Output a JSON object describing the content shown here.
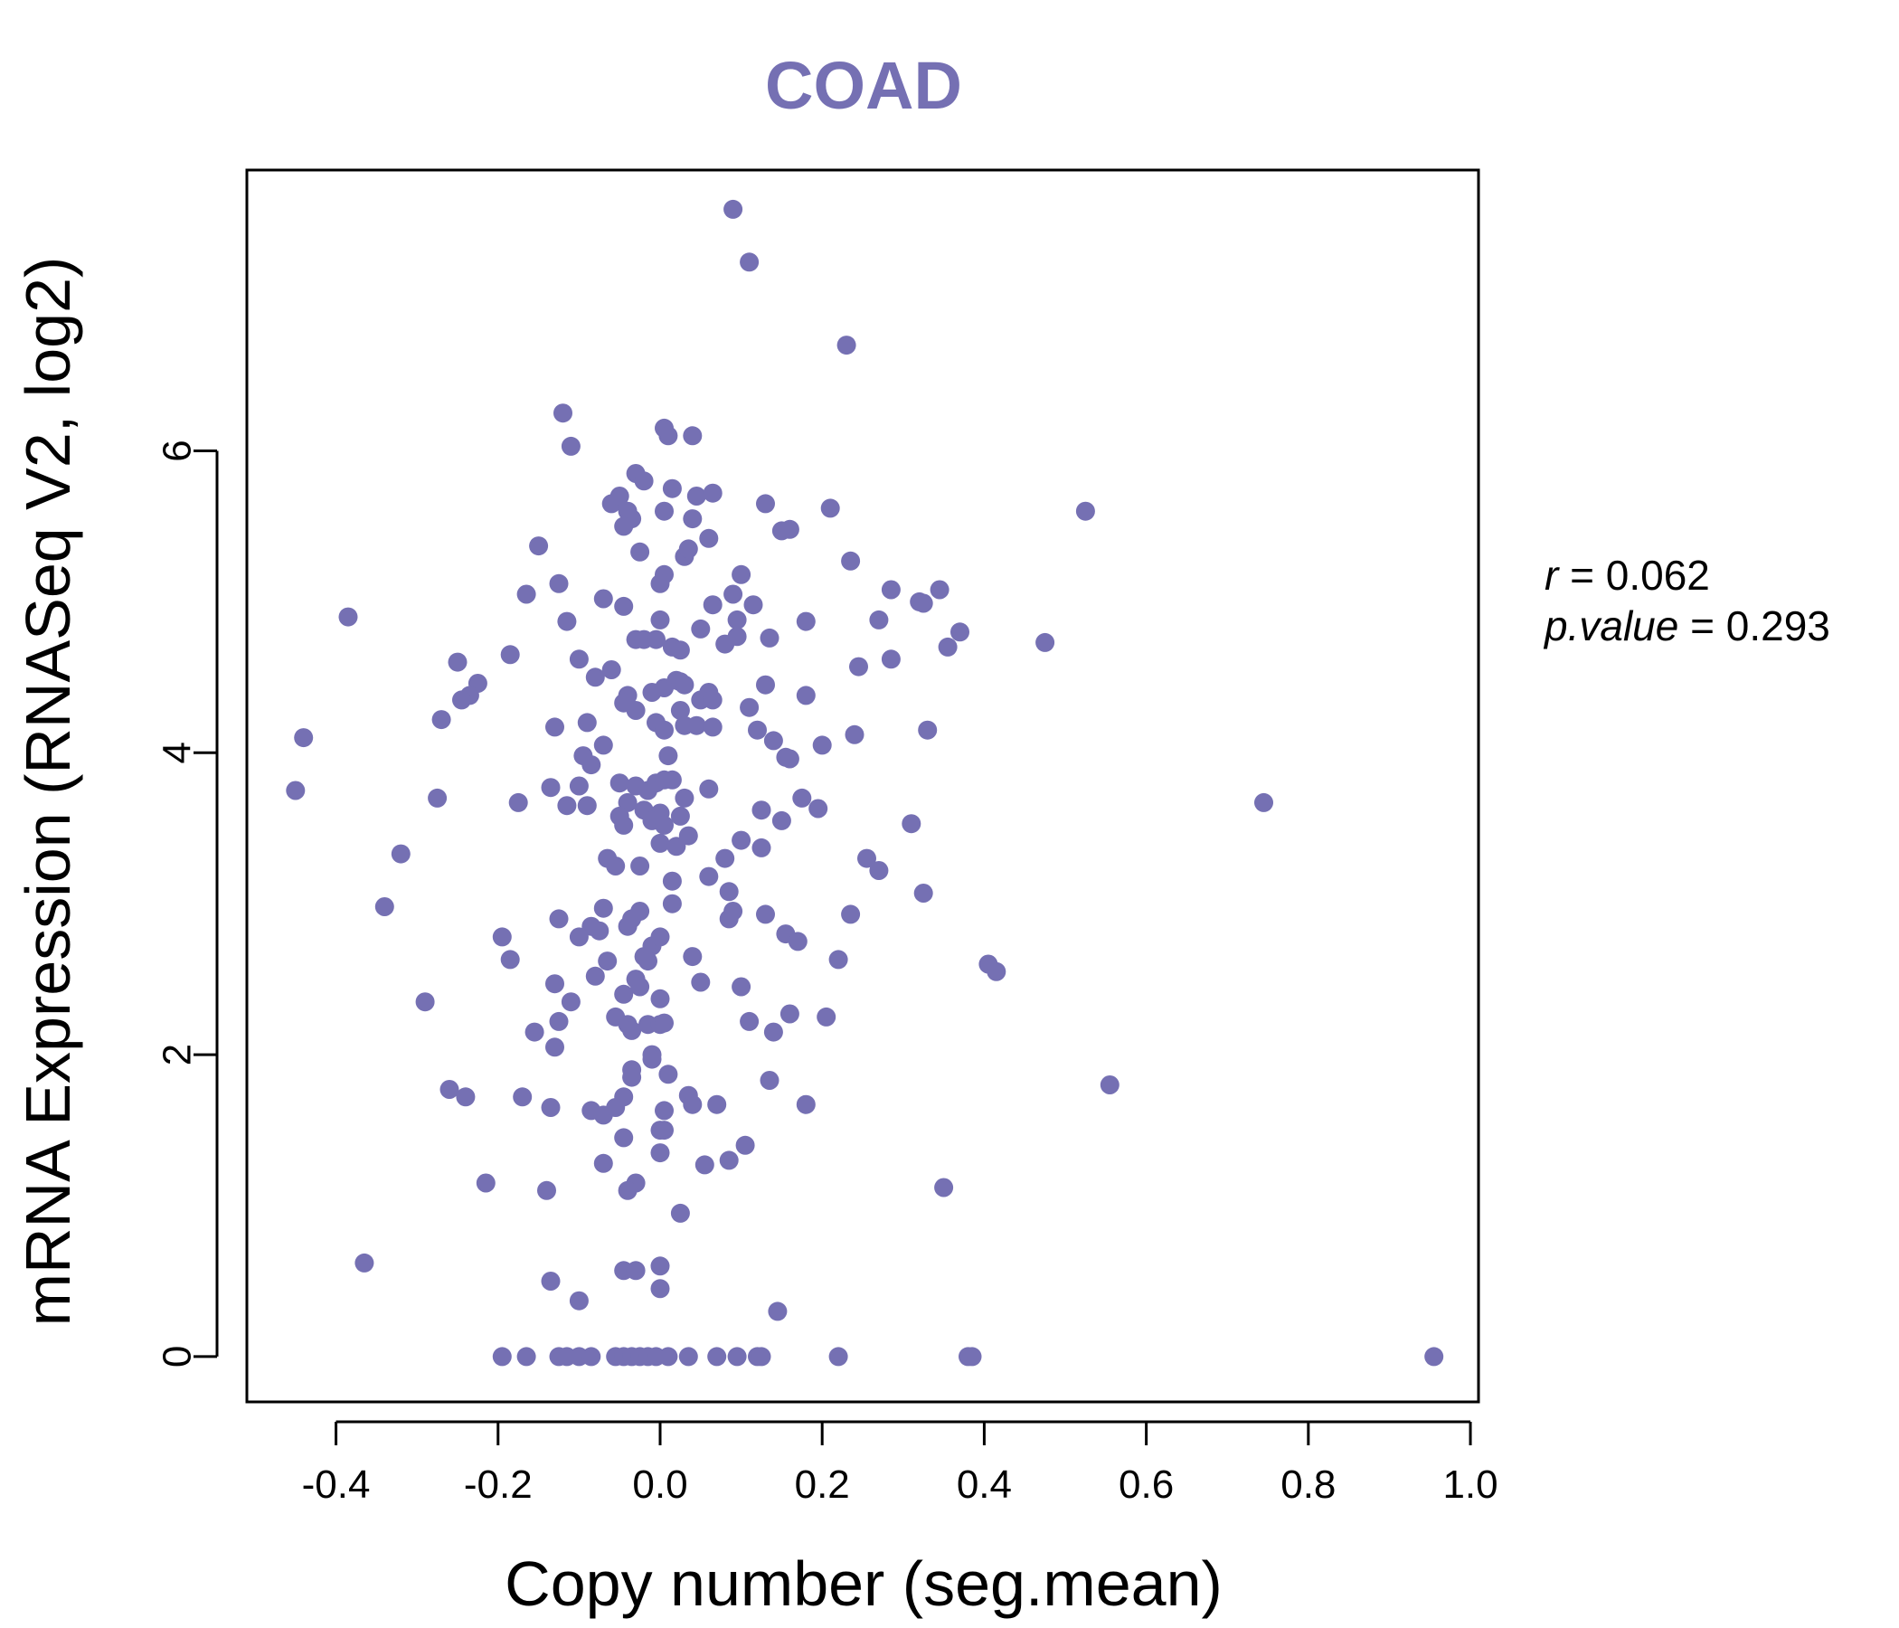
{
  "chart_data": {
    "type": "scatter",
    "title": "COAD",
    "xlabel": "Copy number (seg.mean)",
    "ylabel": "mRNA Expression (RNASeq V2, log2)",
    "xlim": [
      -0.51,
      1.01
    ],
    "ylim": [
      -0.3,
      7.86
    ],
    "x_ticks": [
      -0.4,
      -0.2,
      0.0,
      0.2,
      0.4,
      0.6,
      0.8,
      1.0
    ],
    "x_tick_labels": [
      "-0.4",
      "-0.2",
      "0.0",
      "0.2",
      "0.4",
      "0.6",
      "0.8",
      "1.0"
    ],
    "y_ticks": [
      0,
      2,
      4,
      6
    ],
    "y_tick_labels": [
      "0",
      "2",
      "4",
      "6"
    ],
    "grid": false,
    "colors": {
      "points": "#7570b3",
      "title": "#7570b3"
    },
    "stats": {
      "r_label": "r",
      "r_value": "0.062",
      "p_label": "p.value",
      "p_value": "0.293"
    },
    "points": [
      [
        0.09,
        7.6
      ],
      [
        0.11,
        7.25
      ],
      [
        0.23,
        6.7
      ],
      [
        -0.12,
        6.25
      ],
      [
        -0.11,
        6.03
      ],
      [
        0.005,
        6.15
      ],
      [
        0.01,
        6.1
      ],
      [
        0.04,
        6.1
      ],
      [
        0.525,
        5.6
      ],
      [
        -0.03,
        5.85
      ],
      [
        -0.02,
        5.8
      ],
      [
        0.015,
        5.75
      ],
      [
        -0.06,
        5.65
      ],
      [
        -0.05,
        5.7
      ],
      [
        -0.04,
        5.6
      ],
      [
        -0.035,
        5.55
      ],
      [
        -0.045,
        5.5
      ],
      [
        0.005,
        5.6
      ],
      [
        0.045,
        5.7
      ],
      [
        0.065,
        5.72
      ],
      [
        0.13,
        5.65
      ],
      [
        0.21,
        5.62
      ],
      [
        0.04,
        5.55
      ],
      [
        0.06,
        5.42
      ],
      [
        0.15,
        5.47
      ],
      [
        0.16,
        5.48
      ],
      [
        -0.15,
        5.37
      ],
      [
        -0.025,
        5.33
      ],
      [
        0.03,
        5.3
      ],
      [
        0.035,
        5.35
      ],
      [
        0.235,
        5.27
      ],
      [
        -0.125,
        5.12
      ],
      [
        0.005,
        5.18
      ],
      [
        0.0,
        5.12
      ],
      [
        0.1,
        5.18
      ],
      [
        0.09,
        5.05
      ],
      [
        0.115,
        4.98
      ],
      [
        0.285,
        5.08
      ],
      [
        0.345,
        5.08
      ],
      [
        -0.385,
        4.9
      ],
      [
        -0.165,
        5.05
      ],
      [
        -0.07,
        5.02
      ],
      [
        -0.045,
        4.97
      ],
      [
        0.065,
        4.98
      ],
      [
        0.32,
        5.0
      ],
      [
        0.325,
        4.99
      ],
      [
        -0.115,
        4.87
      ],
      [
        -0.03,
        4.75
      ],
      [
        0.0,
        4.88
      ],
      [
        0.05,
        4.82
      ],
      [
        0.095,
        4.88
      ],
      [
        0.095,
        4.77
      ],
      [
        0.08,
        4.72
      ],
      [
        0.135,
        4.76
      ],
      [
        0.18,
        4.87
      ],
      [
        0.27,
        4.88
      ],
      [
        0.37,
        4.8
      ],
      [
        0.355,
        4.7
      ],
      [
        0.475,
        4.73
      ],
      [
        -0.185,
        4.65
      ],
      [
        -0.1,
        4.62
      ],
      [
        -0.06,
        4.55
      ],
      [
        -0.08,
        4.5
      ],
      [
        -0.02,
        4.75
      ],
      [
        -0.005,
        4.75
      ],
      [
        0.015,
        4.7
      ],
      [
        0.025,
        4.68
      ],
      [
        0.245,
        4.57
      ],
      [
        0.285,
        4.62
      ],
      [
        -0.25,
        4.6
      ],
      [
        -0.225,
        4.46
      ],
      [
        -0.235,
        4.38
      ],
      [
        -0.245,
        4.35
      ],
      [
        -0.04,
        4.38
      ],
      [
        -0.045,
        4.33
      ],
      [
        -0.03,
        4.28
      ],
      [
        -0.01,
        4.4
      ],
      [
        0.005,
        4.43
      ],
      [
        0.02,
        4.48
      ],
      [
        0.025,
        4.47
      ],
      [
        0.03,
        4.45
      ],
      [
        0.05,
        4.35
      ],
      [
        0.06,
        4.4
      ],
      [
        0.065,
        4.35
      ],
      [
        0.13,
        4.45
      ],
      [
        0.18,
        4.38
      ],
      [
        0.11,
        4.3
      ],
      [
        -0.27,
        4.22
      ],
      [
        -0.13,
        4.17
      ],
      [
        -0.09,
        4.2
      ],
      [
        -0.005,
        4.2
      ],
      [
        0.005,
        4.15
      ],
      [
        0.025,
        4.28
      ],
      [
        0.03,
        4.18
      ],
      [
        0.045,
        4.18
      ],
      [
        0.065,
        4.17
      ],
      [
        0.12,
        4.15
      ],
      [
        0.14,
        4.08
      ],
      [
        0.24,
        4.12
      ],
      [
        0.33,
        4.15
      ],
      [
        -0.44,
        4.1
      ],
      [
        -0.07,
        4.05
      ],
      [
        -0.095,
        3.98
      ],
      [
        0.01,
        3.98
      ],
      [
        0.155,
        3.97
      ],
      [
        0.16,
        3.96
      ],
      [
        0.2,
        4.05
      ],
      [
        -0.085,
        3.92
      ],
      [
        -0.45,
        3.75
      ],
      [
        -0.275,
        3.7
      ],
      [
        -0.175,
        3.67
      ],
      [
        -0.135,
        3.77
      ],
      [
        -0.1,
        3.78
      ],
      [
        -0.05,
        3.8
      ],
      [
        -0.03,
        3.78
      ],
      [
        -0.015,
        3.75
      ],
      [
        -0.005,
        3.8
      ],
      [
        0.005,
        3.82
      ],
      [
        0.015,
        3.82
      ],
      [
        0.06,
        3.76
      ],
      [
        0.175,
        3.7
      ],
      [
        -0.115,
        3.65
      ],
      [
        -0.09,
        3.65
      ],
      [
        -0.04,
        3.67
      ],
      [
        -0.02,
        3.62
      ],
      [
        0.0,
        3.6
      ],
      [
        0.025,
        3.58
      ],
      [
        0.03,
        3.7
      ],
      [
        0.125,
        3.62
      ],
      [
        0.15,
        3.55
      ],
      [
        0.195,
        3.63
      ],
      [
        0.745,
        3.67
      ],
      [
        -0.05,
        3.58
      ],
      [
        -0.045,
        3.52
      ],
      [
        -0.01,
        3.55
      ],
      [
        0.005,
        3.52
      ],
      [
        0.035,
        3.45
      ],
      [
        0.0,
        3.4
      ],
      [
        0.02,
        3.38
      ],
      [
        0.1,
        3.42
      ],
      [
        0.125,
        3.37
      ],
      [
        0.31,
        3.53
      ],
      [
        -0.32,
        3.33
      ],
      [
        -0.065,
        3.3
      ],
      [
        -0.055,
        3.25
      ],
      [
        -0.025,
        3.25
      ],
      [
        0.08,
        3.3
      ],
      [
        0.015,
        3.15
      ],
      [
        0.06,
        3.18
      ],
      [
        0.255,
        3.3
      ],
      [
        0.27,
        3.22
      ],
      [
        -0.34,
        2.98
      ],
      [
        0.015,
        3.0
      ],
      [
        0.085,
        3.08
      ],
      [
        0.085,
        2.9
      ],
      [
        0.09,
        2.95
      ],
      [
        0.325,
        3.07
      ],
      [
        0.13,
        2.93
      ],
      [
        0.235,
        2.93
      ],
      [
        -0.125,
        2.9
      ],
      [
        -0.07,
        2.97
      ],
      [
        -0.085,
        2.85
      ],
      [
        -0.035,
        2.9
      ],
      [
        -0.025,
        2.95
      ],
      [
        -0.195,
        2.78
      ],
      [
        -0.1,
        2.78
      ],
      [
        -0.075,
        2.82
      ],
      [
        -0.04,
        2.85
      ],
      [
        -0.01,
        2.72
      ],
      [
        0.0,
        2.78
      ],
      [
        0.155,
        2.8
      ],
      [
        0.17,
        2.75
      ],
      [
        -0.185,
        2.63
      ],
      [
        -0.065,
        2.62
      ],
      [
        -0.02,
        2.65
      ],
      [
        -0.015,
        2.62
      ],
      [
        0.04,
        2.65
      ],
      [
        0.22,
        2.63
      ],
      [
        0.405,
        2.6
      ],
      [
        0.415,
        2.55
      ],
      [
        -0.08,
        2.52
      ],
      [
        -0.03,
        2.5
      ],
      [
        -0.025,
        2.45
      ],
      [
        -0.13,
        2.47
      ],
      [
        0.05,
        2.48
      ],
      [
        0.1,
        2.45
      ],
      [
        -0.29,
        2.35
      ],
      [
        -0.11,
        2.35
      ],
      [
        -0.045,
        2.4
      ],
      [
        0.0,
        2.37
      ],
      [
        -0.055,
        2.25
      ],
      [
        -0.125,
        2.22
      ],
      [
        -0.04,
        2.2
      ],
      [
        -0.015,
        2.2
      ],
      [
        0.0,
        2.2
      ],
      [
        0.005,
        2.21
      ],
      [
        0.11,
        2.22
      ],
      [
        0.16,
        2.27
      ],
      [
        0.205,
        2.25
      ],
      [
        -0.155,
        2.15
      ],
      [
        -0.13,
        2.05
      ],
      [
        -0.035,
        2.16
      ],
      [
        0.14,
        2.15
      ],
      [
        -0.01,
        2.0
      ],
      [
        -0.01,
        1.97
      ],
      [
        -0.035,
        1.9
      ],
      [
        -0.035,
        1.85
      ],
      [
        0.01,
        1.87
      ],
      [
        0.135,
        1.83
      ],
      [
        0.555,
        1.8
      ],
      [
        -0.26,
        1.77
      ],
      [
        -0.24,
        1.72
      ],
      [
        -0.17,
        1.72
      ],
      [
        -0.045,
        1.72
      ],
      [
        0.035,
        1.73
      ],
      [
        0.04,
        1.67
      ],
      [
        0.07,
        1.67
      ],
      [
        0.18,
        1.67
      ],
      [
        -0.135,
        1.65
      ],
      [
        -0.085,
        1.63
      ],
      [
        -0.07,
        1.6
      ],
      [
        -0.055,
        1.65
      ],
      [
        0.005,
        1.63
      ],
      [
        -0.045,
        1.45
      ],
      [
        0.0,
        1.5
      ],
      [
        0.005,
        1.5
      ],
      [
        0.0,
        1.35
      ],
      [
        0.085,
        1.3
      ],
      [
        0.105,
        1.4
      ],
      [
        -0.07,
        1.28
      ],
      [
        0.055,
        1.27
      ],
      [
        -0.215,
        1.15
      ],
      [
        -0.03,
        1.15
      ],
      [
        -0.04,
        1.1
      ],
      [
        -0.14,
        1.1
      ],
      [
        0.35,
        1.12
      ],
      [
        0.025,
        0.95
      ],
      [
        -0.365,
        0.62
      ],
      [
        -0.045,
        0.57
      ],
      [
        -0.03,
        0.57
      ],
      [
        0.0,
        0.6
      ],
      [
        -0.135,
        0.5
      ],
      [
        0.0,
        0.45
      ],
      [
        -0.1,
        0.37
      ],
      [
        0.145,
        0.3
      ],
      [
        -0.195,
        0.0
      ],
      [
        -0.165,
        0.0
      ],
      [
        -0.125,
        0.0
      ],
      [
        -0.115,
        0.0
      ],
      [
        -0.1,
        0.0
      ],
      [
        -0.085,
        0.0
      ],
      [
        -0.055,
        0.0
      ],
      [
        -0.045,
        0.0
      ],
      [
        -0.035,
        0.0
      ],
      [
        -0.025,
        0.0
      ],
      [
        -0.015,
        0.0
      ],
      [
        -0.005,
        0.0
      ],
      [
        0.01,
        0.0
      ],
      [
        0.035,
        0.0
      ],
      [
        0.07,
        0.0
      ],
      [
        0.095,
        0.0
      ],
      [
        0.12,
        0.0
      ],
      [
        0.125,
        0.0
      ],
      [
        0.22,
        0.0
      ],
      [
        0.38,
        0.0
      ],
      [
        0.385,
        0.0
      ],
      [
        0.955,
        0.0
      ]
    ]
  }
}
